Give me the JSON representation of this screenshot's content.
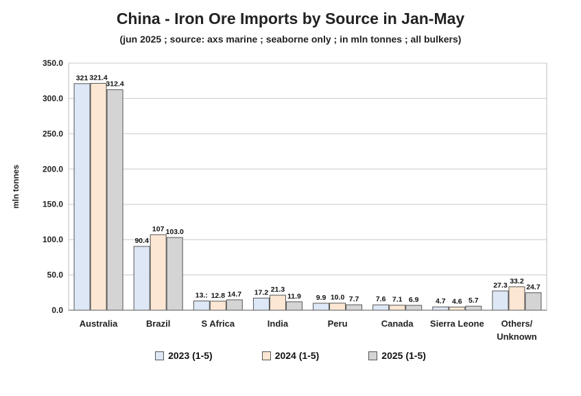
{
  "chart_data": {
    "type": "bar",
    "title": "China - Iron Ore Imports by Source in Jan-May",
    "subtitle": "(jun 2025 ; source: axs marine ; seaborne only ; in mln tonnes ; all bulkers)",
    "ylabel": "mln tonnes",
    "xlabel": "",
    "ylim": [
      0,
      350
    ],
    "yticks": [
      "0.0",
      "50.0",
      "100.0",
      "150.0",
      "200.0",
      "250.0",
      "300.0",
      "350.0"
    ],
    "grid": true,
    "legend_position": "bottom",
    "categories": [
      "Australia",
      "Brazil",
      "S Africa",
      "India",
      "Peru",
      "Canada",
      "Sierra Leone",
      "Others/\nUnknown"
    ],
    "series": [
      {
        "name": "2023 (1-5)",
        "color": "#dde7f6",
        "values": [
          321.0,
          90.4,
          13.1,
          17.2,
          9.9,
          7.6,
          4.7,
          27.3
        ],
        "labels": [
          "321",
          "90.4",
          "13.:",
          "17.2",
          "9.9",
          "7.6",
          "4.7",
          "27.3"
        ]
      },
      {
        "name": "2024 (1-5)",
        "color": "#fbe7d3",
        "values": [
          321.4,
          107.0,
          12.8,
          21.3,
          10.0,
          7.1,
          4.6,
          33.2
        ],
        "labels": [
          "321.4",
          "107",
          "12.8",
          "21.3",
          "10.0",
          "7.1",
          "4.6",
          "33.2"
        ]
      },
      {
        "name": "2025 (1-5)",
        "color": "#d4d4d4",
        "values": [
          312.4,
          103.0,
          14.7,
          11.9,
          7.7,
          6.9,
          5.7,
          24.7
        ],
        "labels": [
          "312.4",
          "103.0",
          "14.7",
          "11.9",
          "7.7",
          "6.9",
          "5.7",
          "24.7"
        ]
      }
    ]
  }
}
